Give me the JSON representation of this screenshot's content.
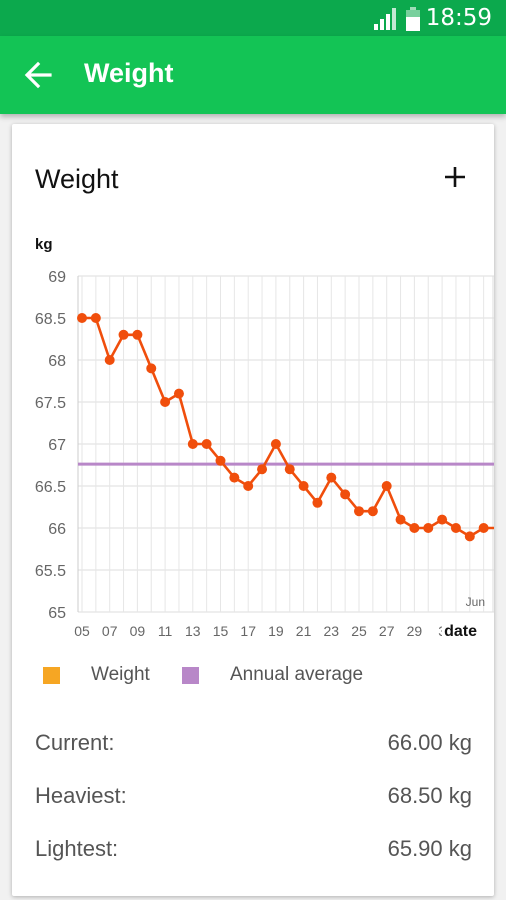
{
  "status_bar": {
    "time": "18:59",
    "icons": [
      "signal-icon",
      "battery-icon"
    ]
  },
  "app_bar": {
    "title": "Weight",
    "back_icon": "arrow-left-icon"
  },
  "card": {
    "title": "Weight",
    "add_icon": "plus-icon"
  },
  "colors": {
    "status_bar": "#0ca94d",
    "app_bar": "#13c455",
    "weight_series": "#f04e0c",
    "weight_legend": "#f6a623",
    "annual_average": "#b887c8"
  },
  "chart_data": {
    "type": "line",
    "ylabel": "kg",
    "xlabel": "date",
    "ylim": [
      65,
      69
    ],
    "y_ticks": [
      "65",
      "65.5",
      "66",
      "66.5",
      "67",
      "67.5",
      "68",
      "68.5",
      "69"
    ],
    "x_ticks": [
      "05",
      "07",
      "09",
      "11",
      "13",
      "15",
      "17",
      "19",
      "21",
      "23",
      "25",
      "27",
      "29",
      "3"
    ],
    "x_month_label": "Jun",
    "grid": true,
    "legend_position": "bottom",
    "series": [
      {
        "name": "Weight",
        "x": [
          "05",
          "06",
          "07",
          "08",
          "09",
          "10",
          "11",
          "12",
          "13",
          "14",
          "15",
          "16",
          "17",
          "18",
          "19",
          "20",
          "21",
          "22",
          "23",
          "24",
          "25",
          "26",
          "27",
          "28",
          "29",
          "30",
          "31",
          "01",
          "02",
          "03"
        ],
        "values": [
          68.5,
          68.5,
          68.0,
          68.3,
          68.3,
          67.9,
          67.5,
          67.6,
          67.0,
          67.0,
          66.8,
          66.6,
          66.5,
          66.7,
          67.0,
          66.7,
          66.5,
          66.3,
          66.6,
          66.4,
          66.2,
          66.2,
          66.5,
          66.1,
          66.0,
          66.0,
          66.1,
          66.0,
          65.9,
          66.0
        ]
      },
      {
        "name": "Annual average",
        "value": 66.76
      }
    ]
  },
  "legend": {
    "weight": "Weight",
    "annual_average": "Annual average"
  },
  "stats": {
    "current_label": "Current:",
    "current_value": "66.00 kg",
    "heaviest_label": "Heaviest:",
    "heaviest_value": "68.50 kg",
    "lightest_label": "Lightest:",
    "lightest_value": "65.90 kg"
  }
}
